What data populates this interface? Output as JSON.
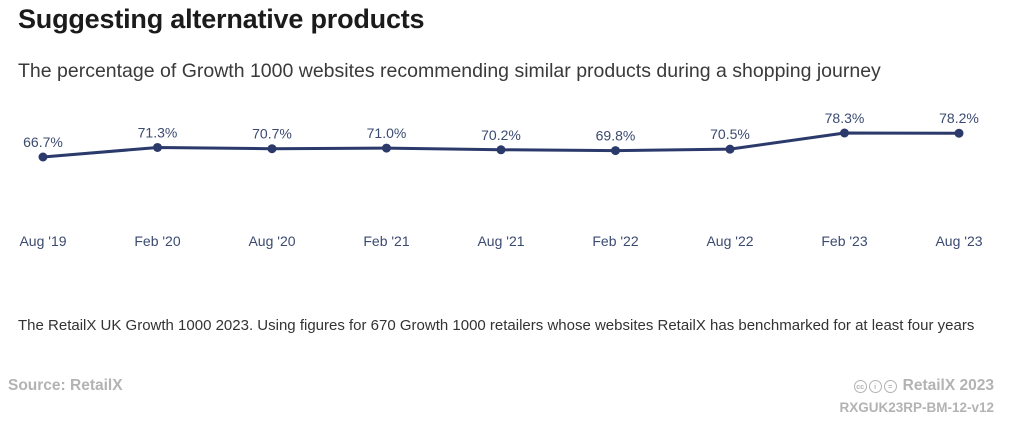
{
  "header": {
    "title": "Suggesting alternative products",
    "subtitle": "The percentage of Growth 1000 websites recommending similar products during a shopping journey"
  },
  "chart_data": {
    "type": "line",
    "categories": [
      "Aug '19",
      "Feb '20",
      "Aug '20",
      "Feb '21",
      "Aug '21",
      "Feb '22",
      "Aug '22",
      "Feb '23",
      "Aug '23"
    ],
    "values": [
      66.7,
      71.3,
      70.7,
      71.0,
      70.2,
      69.8,
      70.5,
      78.3,
      78.2
    ],
    "data_labels": [
      "66.7%",
      "71.3%",
      "70.7%",
      "71.0%",
      "70.2%",
      "69.8%",
      "70.5%",
      "78.3%",
      "78.2%"
    ],
    "title": "Suggesting alternative products",
    "subtitle": "The percentage of Growth 1000 websites recommending similar products during a shopping journey",
    "xlabel": "",
    "ylabel": "",
    "ylim": [
      0,
      100
    ],
    "grid": false,
    "legend": "none",
    "color": "#2b3a6b"
  },
  "footer": {
    "note": "The RetailX UK Growth 1000 2023. Using figures for 670 Growth 1000 retailers whose websites RetailX has benchmarked for at least four years",
    "source": "Source: RetailX",
    "brand": "RetailX 2023",
    "report_id": "RXGUK23RP-BM-12-v12",
    "license_icons": [
      "cc-icon",
      "by-icon",
      "nd-icon"
    ]
  }
}
